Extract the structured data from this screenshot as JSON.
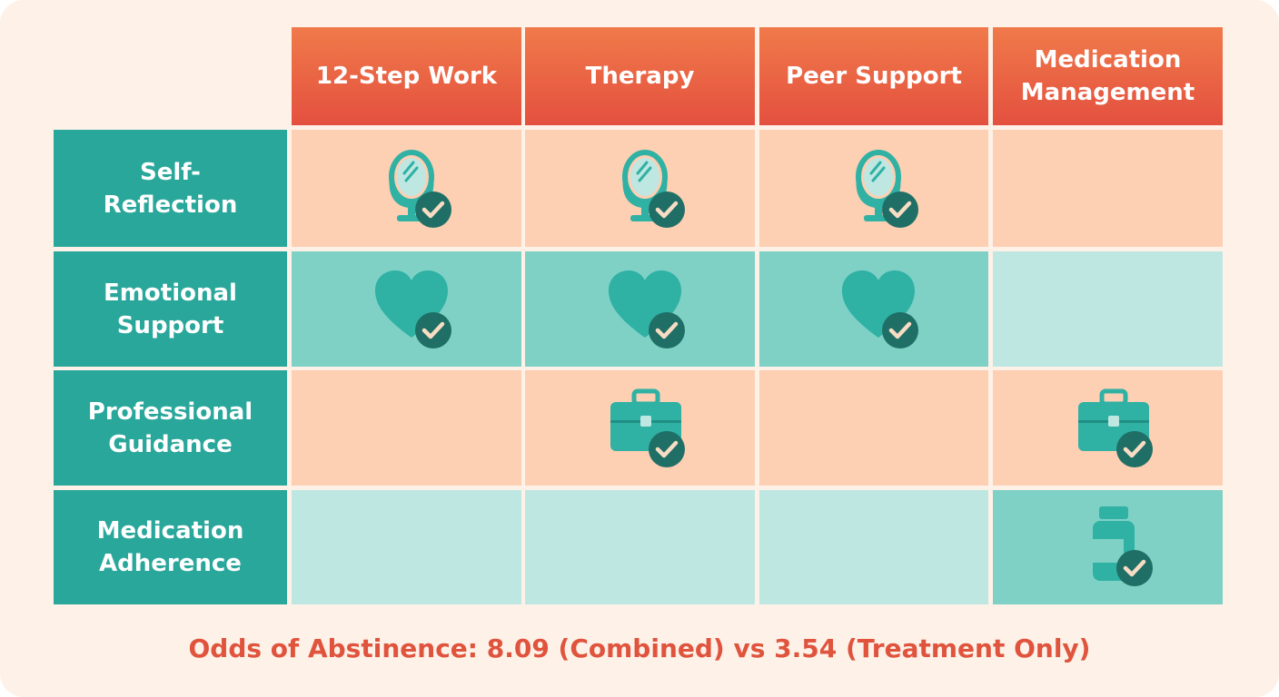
{
  "table": {
    "columns": [
      "12-Step Work",
      "Therapy",
      "Peer Support",
      "Medication Management"
    ],
    "rows": [
      {
        "label": "Self-Reflection",
        "checks": [
          true,
          true,
          true,
          false
        ]
      },
      {
        "label": "Emotional Support",
        "checks": [
          true,
          true,
          true,
          false
        ]
      },
      {
        "label": "Professional Guidance",
        "checks": [
          false,
          true,
          false,
          true
        ]
      },
      {
        "label": "Medication Adherence",
        "checks": [
          false,
          false,
          false,
          true
        ]
      }
    ]
  },
  "footer": "Odds of Abstinence: 8.09 (Combined) vs 3.54 (Treatment Only)"
}
